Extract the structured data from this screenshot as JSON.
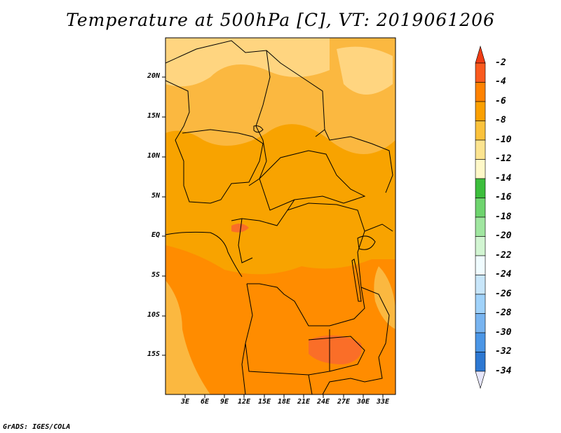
{
  "title": "Temperature at 500hPa [C], VT: 2019061206",
  "map": {
    "lat_ticks": [
      "20N",
      "15N",
      "10N",
      "5N",
      "EQ",
      "5S",
      "10S",
      "15S"
    ],
    "lon_ticks": [
      "3E",
      "6E",
      "9E",
      "12E",
      "15E",
      "18E",
      "21E",
      "24E",
      "27E",
      "30E",
      "33E"
    ],
    "fill_colors": {
      "minus2_to_0": "#fa6e28",
      "minus4_to_minus2": "#ff8c00",
      "minus6_to_minus4": "#f8a300",
      "minus8_to_minus6": "#fbb840",
      "minus10_to_minus8": "#ffd580",
      "coast_border": "#000000"
    }
  },
  "colorbar": {
    "labels": [
      "-2",
      "-4",
      "-6",
      "-8",
      "-10",
      "-12",
      "-14",
      "-16",
      "-18",
      "-20",
      "-22",
      "-24",
      "-26",
      "-28",
      "-30",
      "-32",
      "-34"
    ],
    "top_color": "#f03c14",
    "colors": [
      "#fa5a1e",
      "#ff8200",
      "#fba000",
      "#fbc23c",
      "#fce490",
      "#fff8c8",
      "#3cbe3c",
      "#6ed46e",
      "#a0e6a0",
      "#d2f5d2",
      "#f0fcff",
      "#c8e6fa",
      "#a0d2fa",
      "#78b4f0",
      "#4b96e6",
      "#2d78d2",
      "#1e5ab4",
      "#0a3c96",
      "#0a1e78"
    ],
    "bottom_color": "#e6e6fa"
  },
  "credit": "GrADS: IGES/COLA"
}
